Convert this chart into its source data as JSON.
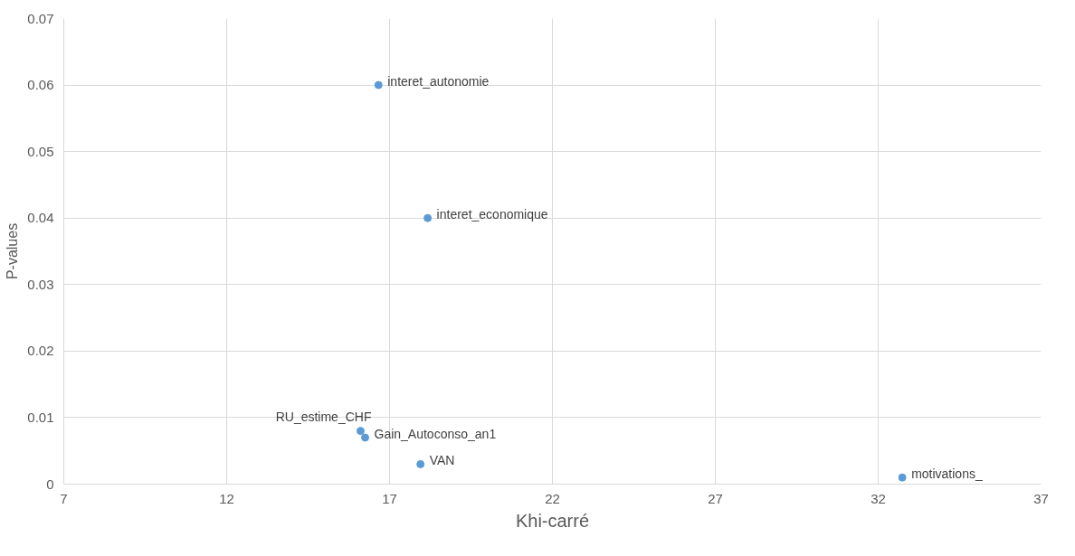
{
  "chart_data": {
    "type": "scatter",
    "xlabel": "Khi-carré",
    "ylabel": "P-values",
    "x": [
      16.66,
      18.17,
      16.11,
      16.25,
      17.95,
      32.74
    ],
    "series": [
      {
        "color": "#5b9bd5",
        "values": [
          0.06,
          0.04,
          0.008,
          0.007,
          0.003,
          0.001
        ]
      }
    ],
    "annotations": [
      {
        "text": "interet_autonomie",
        "x": 16.66,
        "y": 0.06
      },
      {
        "text": "interet_economique",
        "x": 18.17,
        "y": 0.04
      },
      {
        "text": "RU_estime_CHF",
        "x": 16.11,
        "y": 0.008
      },
      {
        "text": "Gain_Autoconso_an1",
        "x": 16.25,
        "y": 0.007
      },
      {
        "text": "VAN",
        "x": 17.95,
        "y": 0.003
      },
      {
        "text": "motivations_",
        "x": 32.74,
        "y": 0.001
      }
    ],
    "xlim": [
      7,
      37
    ],
    "xticks": [
      7,
      12,
      17,
      22,
      27,
      32,
      37
    ],
    "ylim": [
      0,
      0.07
    ],
    "yticks": [
      0,
      0.01,
      0.02,
      0.03,
      0.04,
      0.05,
      0.06,
      0.07
    ],
    "grid": true,
    "marker": "circle"
  }
}
